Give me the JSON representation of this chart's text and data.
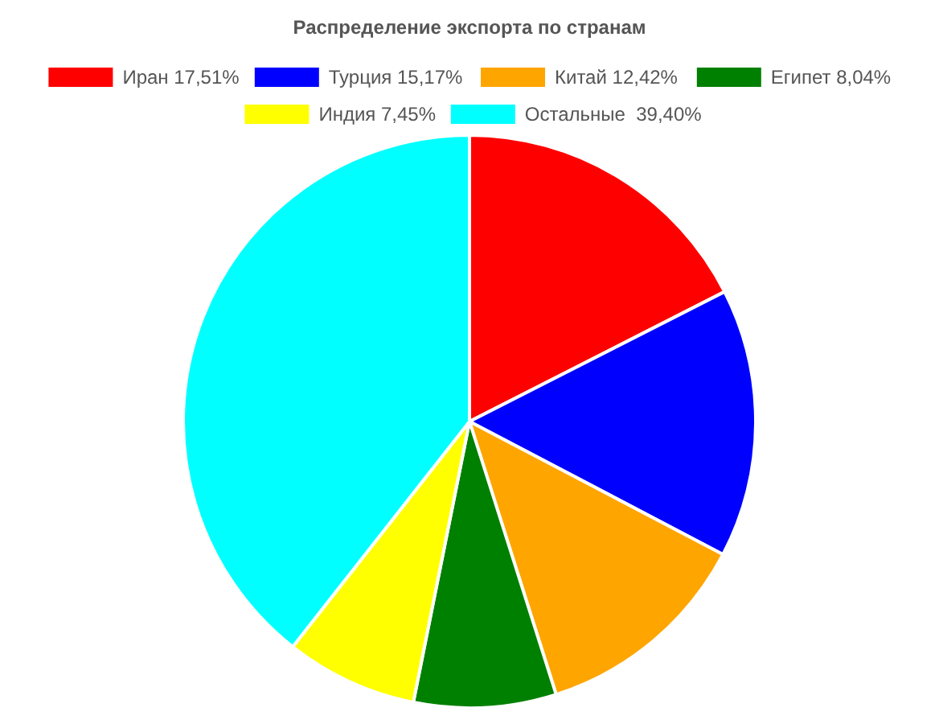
{
  "chart_data": {
    "type": "pie",
    "title": "Распределение экспорта по странам",
    "categories": [
      "Иран 17,51%",
      "Турция 15,17%",
      "Китай 12,42%",
      "Египет 8,04%",
      "Индия 7,45%",
      "Остальные  39,40%"
    ],
    "values": [
      17.51,
      15.17,
      12.42,
      8.04,
      7.45,
      39.4
    ],
    "colors": [
      "#ff0000",
      "#0000ff",
      "#ffa500",
      "#008000",
      "#ffff00",
      "#00ffff"
    ],
    "legend": "top"
  }
}
